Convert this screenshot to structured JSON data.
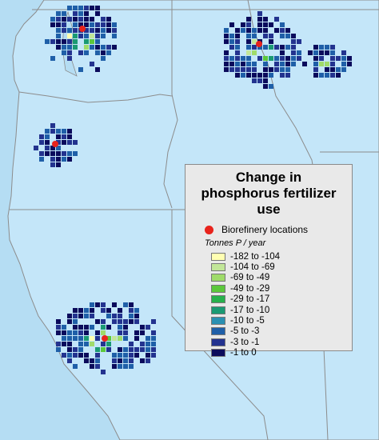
{
  "legend": {
    "title": "Change in phosphorus fertilizer use",
    "marker_label": "Biorefinery locations",
    "units": "Tonnes P / year",
    "classes": [
      {
        "label": "-182 to -104",
        "color": "#ffffb2"
      },
      {
        "label": "-104 to -69",
        "color": "#c2e699"
      },
      {
        "label": "-69 to -49",
        "color": "#9fdb6a"
      },
      {
        "label": "-49 to -29",
        "color": "#5cc83c"
      },
      {
        "label": "-29 to -17",
        "color": "#27b14c"
      },
      {
        "label": "-17 to -10",
        "color": "#1a9a73"
      },
      {
        "label": "-10 to -5",
        "color": "#2a90b2"
      },
      {
        "label": "-5 to -3",
        "color": "#1f5fa8"
      },
      {
        "label": "-3 to -1",
        "color": "#23338f"
      },
      {
        "label": "-1 to 0",
        "color": "#0b0b5c"
      }
    ]
  }
}
